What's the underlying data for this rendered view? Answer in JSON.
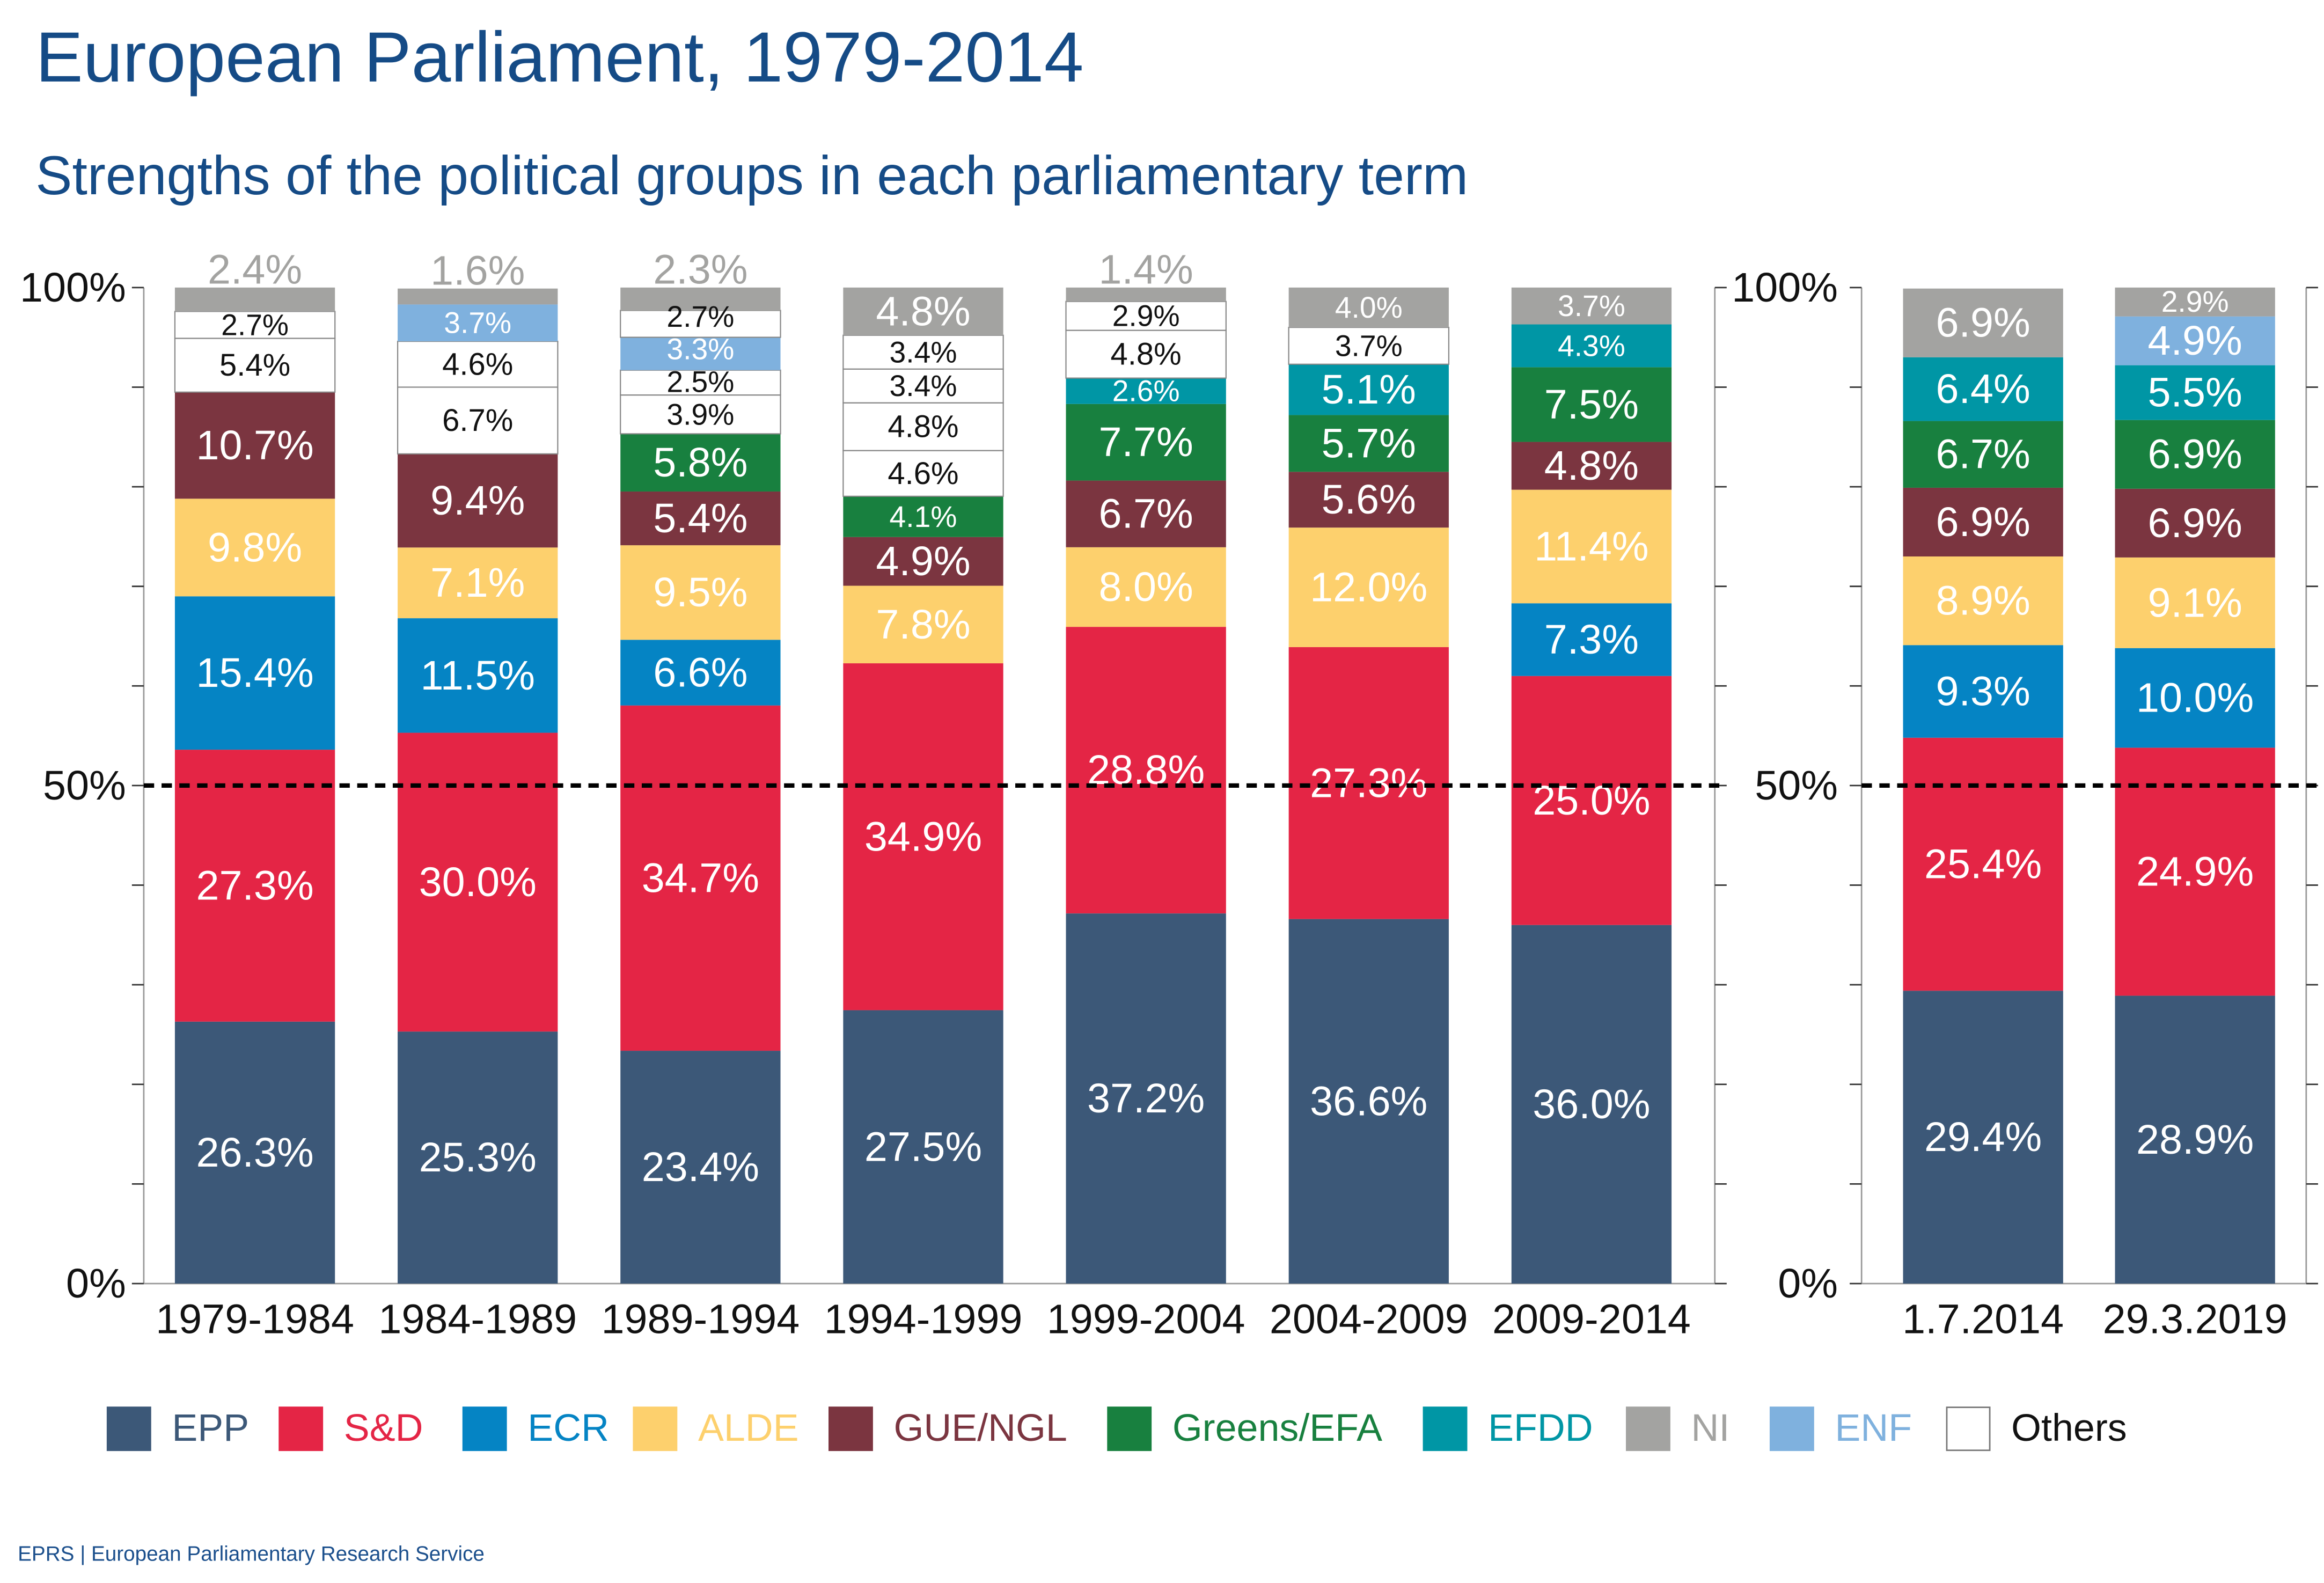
{
  "header": {
    "title": "European Parliament, 1979-2014",
    "subtitle": "Strengths of the political groups in each parliamentary term"
  },
  "footer": "EPRS | European Parliamentary Research Service",
  "legend": [
    {
      "name": "EPP",
      "color": "#3c5878"
    },
    {
      "name": "S&D",
      "color": "#e42545"
    },
    {
      "name": "ECR",
      "color": "#0584c4"
    },
    {
      "name": "ALDE",
      "color": "#fdd06d"
    },
    {
      "name": "GUE/NGL",
      "color": "#7b3540"
    },
    {
      "name": "Greens/EFA",
      "color": "#18803f"
    },
    {
      "name": "EFDD",
      "color": "#0096a5"
    },
    {
      "name": "NI",
      "color": "#a3a3a1"
    },
    {
      "name": "ENF",
      "color": "#7fb1de"
    },
    {
      "name": "Others",
      "color": "#ffffff"
    }
  ],
  "chart_data": [
    {
      "type": "bar",
      "stacked": true,
      "unit": "%",
      "ylim": [
        0,
        100
      ],
      "yticks": [
        "0%",
        "50%",
        "100%"
      ],
      "reference_line": {
        "value": 50,
        "style": "dashed"
      },
      "categories": [
        "1979-1984",
        "1984-1989",
        "1989-1994",
        "1994-1999",
        "1999-2004",
        "2004-2009",
        "2009-2014"
      ],
      "columns": [
        [
          {
            "group": "EPP",
            "value": 26.3
          },
          {
            "group": "S&D",
            "value": 27.3
          },
          {
            "group": "ECR",
            "value": 15.4
          },
          {
            "group": "ALDE",
            "value": 9.8
          },
          {
            "group": "GUE/NGL",
            "value": 10.7
          },
          {
            "group": "Others",
            "value": 5.4
          },
          {
            "group": "Others",
            "value": 2.7
          },
          {
            "group": "NI",
            "value": 2.4
          }
        ],
        [
          {
            "group": "EPP",
            "value": 25.3
          },
          {
            "group": "S&D",
            "value": 30.0
          },
          {
            "group": "ECR",
            "value": 11.5
          },
          {
            "group": "ALDE",
            "value": 7.1
          },
          {
            "group": "GUE/NGL",
            "value": 9.4
          },
          {
            "group": "Others",
            "value": 6.7
          },
          {
            "group": "Others",
            "value": 4.6
          },
          {
            "group": "ENF",
            "value": 3.7
          },
          {
            "group": "NI",
            "value": 1.6
          }
        ],
        [
          {
            "group": "EPP",
            "value": 23.4
          },
          {
            "group": "S&D",
            "value": 34.7
          },
          {
            "group": "ECR",
            "value": 6.6
          },
          {
            "group": "ALDE",
            "value": 9.5
          },
          {
            "group": "GUE/NGL",
            "value": 5.4
          },
          {
            "group": "Greens/EFA",
            "value": 5.8
          },
          {
            "group": "Others",
            "value": 3.9
          },
          {
            "group": "Others",
            "value": 2.5
          },
          {
            "group": "ENF",
            "value": 3.3
          },
          {
            "group": "Others",
            "value": 2.7
          },
          {
            "group": "NI",
            "value": 2.3
          }
        ],
        [
          {
            "group": "EPP",
            "value": 27.5
          },
          {
            "group": "S&D",
            "value": 34.9
          },
          {
            "group": "ALDE",
            "value": 7.8
          },
          {
            "group": "GUE/NGL",
            "value": 4.9
          },
          {
            "group": "Greens/EFA",
            "value": 4.1
          },
          {
            "group": "Others",
            "value": 4.6
          },
          {
            "group": "Others",
            "value": 4.8
          },
          {
            "group": "Others",
            "value": 3.4
          },
          {
            "group": "Others",
            "value": 3.4
          },
          {
            "group": "NI",
            "value": 4.8
          }
        ],
        [
          {
            "group": "EPP",
            "value": 37.2
          },
          {
            "group": "S&D",
            "value": 28.8
          },
          {
            "group": "ALDE",
            "value": 8.0
          },
          {
            "group": "GUE/NGL",
            "value": 6.7
          },
          {
            "group": "Greens/EFA",
            "value": 7.7
          },
          {
            "group": "EFDD",
            "value": 2.6
          },
          {
            "group": "Others",
            "value": 4.8
          },
          {
            "group": "Others",
            "value": 2.9
          },
          {
            "group": "NI",
            "value": 1.4
          }
        ],
        [
          {
            "group": "EPP",
            "value": 36.6
          },
          {
            "group": "S&D",
            "value": 27.3
          },
          {
            "group": "ALDE",
            "value": 12.0
          },
          {
            "group": "GUE/NGL",
            "value": 5.6
          },
          {
            "group": "Greens/EFA",
            "value": 5.7
          },
          {
            "group": "EFDD",
            "value": 5.1
          },
          {
            "group": "Others",
            "value": 3.7
          },
          {
            "group": "NI",
            "value": 4.0
          }
        ],
        [
          {
            "group": "EPP",
            "value": 36.0
          },
          {
            "group": "S&D",
            "value": 25.0
          },
          {
            "group": "ECR",
            "value": 7.3
          },
          {
            "group": "ALDE",
            "value": 11.4
          },
          {
            "group": "GUE/NGL",
            "value": 4.8
          },
          {
            "group": "Greens/EFA",
            "value": 7.5
          },
          {
            "group": "EFDD",
            "value": 4.3
          },
          {
            "group": "NI",
            "value": 3.7
          }
        ]
      ]
    },
    {
      "type": "bar",
      "stacked": true,
      "unit": "%",
      "ylim": [
        0,
        100
      ],
      "yticks": [
        "0%",
        "50%",
        "100%"
      ],
      "reference_line": {
        "value": 50,
        "style": "dashed"
      },
      "categories": [
        "1.7.2014",
        "29.3.2019"
      ],
      "columns": [
        [
          {
            "group": "EPP",
            "value": 29.4
          },
          {
            "group": "S&D",
            "value": 25.4
          },
          {
            "group": "ECR",
            "value": 9.3
          },
          {
            "group": "ALDE",
            "value": 8.9
          },
          {
            "group": "GUE/NGL",
            "value": 6.9
          },
          {
            "group": "Greens/EFA",
            "value": 6.7
          },
          {
            "group": "EFDD",
            "value": 6.4
          },
          {
            "group": "NI",
            "value": 6.9
          }
        ],
        [
          {
            "group": "EPP",
            "value": 28.9
          },
          {
            "group": "S&D",
            "value": 24.9
          },
          {
            "group": "ECR",
            "value": 10.0
          },
          {
            "group": "ALDE",
            "value": 9.1
          },
          {
            "group": "GUE/NGL",
            "value": 6.9
          },
          {
            "group": "Greens/EFA",
            "value": 6.9
          },
          {
            "group": "EFDD",
            "value": 5.5
          },
          {
            "group": "ENF",
            "value": 4.9
          },
          {
            "group": "NI",
            "value": 2.9
          }
        ]
      ]
    }
  ]
}
